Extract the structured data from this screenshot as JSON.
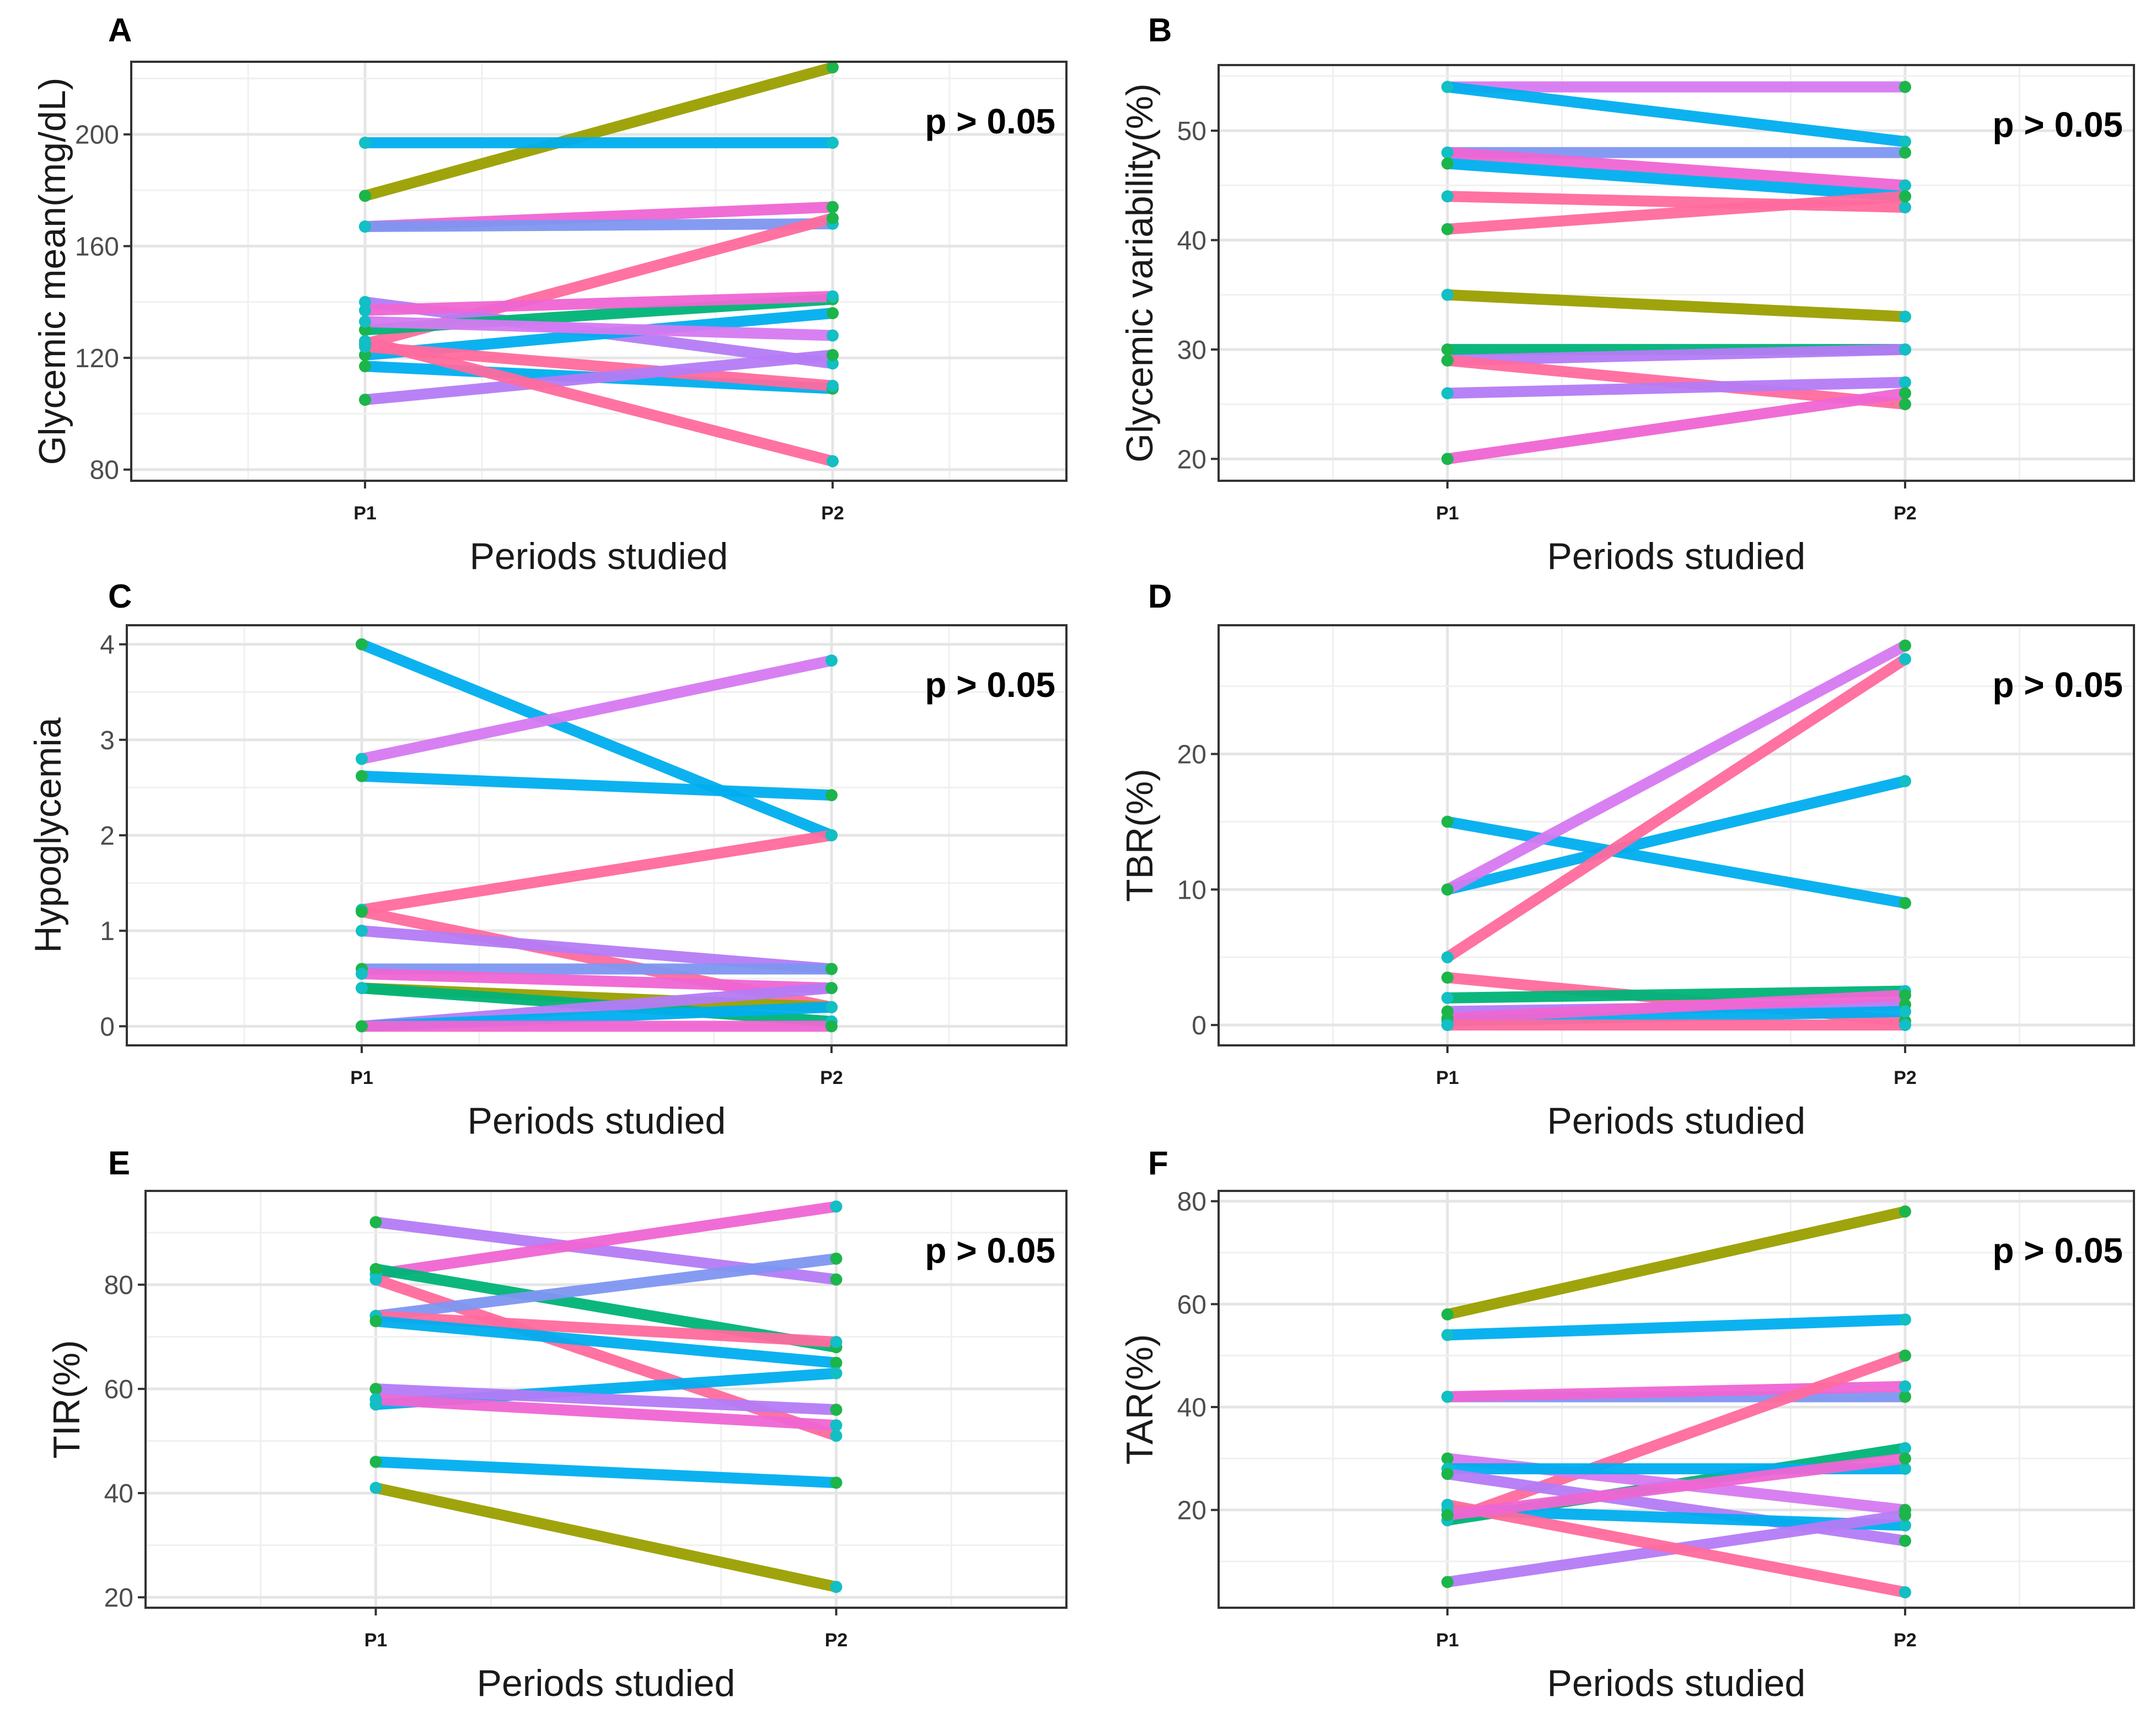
{
  "chart_data": [
    {
      "panel": "A",
      "type": "line",
      "xlabel": "Periods studied",
      "ylabel": "Glycemic mean(mg/dL)",
      "categories": [
        "P1",
        "P2"
      ],
      "ylim": [
        76,
        226
      ],
      "yticks": [
        80,
        120,
        160,
        200
      ],
      "annotation": "p > 0.05",
      "series": [
        {
          "color": "#9AA000",
          "values": [
            178,
            224
          ]
        },
        {
          "color": "#00AEEF",
          "values": [
            197,
            197
          ]
        },
        {
          "color": "#F066D4",
          "values": [
            167,
            174
          ]
        },
        {
          "color": "#7F96F2",
          "values": [
            167,
            168
          ]
        },
        {
          "color": "#FF6B9E",
          "values": [
            125,
            170
          ]
        },
        {
          "color": "#B57CF6",
          "values": [
            140,
            118
          ]
        },
        {
          "color": "#00B478",
          "values": [
            130,
            141
          ]
        },
        {
          "color": "#F066D4",
          "values": [
            137,
            142
          ]
        },
        {
          "color": "#00AEEF",
          "values": [
            121,
            136
          ]
        },
        {
          "color": "#D67AF2",
          "values": [
            133,
            128
          ]
        },
        {
          "color": "#00AEEF",
          "values": [
            117,
            109
          ]
        },
        {
          "color": "#FF6B9E",
          "values": [
            124,
            110
          ]
        },
        {
          "color": "#B57CF6",
          "values": [
            105,
            121
          ]
        },
        {
          "color": "#FF6B9E",
          "values": [
            126,
            83
          ]
        }
      ]
    },
    {
      "panel": "B",
      "type": "line",
      "xlabel": "Periods studied",
      "ylabel": "Glycemic variability(%)",
      "categories": [
        "P1",
        "P2"
      ],
      "ylim": [
        18,
        56
      ],
      "yticks": [
        20,
        30,
        40,
        50
      ],
      "annotation": "p > 0.05",
      "series": [
        {
          "color": "#D67AF2",
          "values": [
            54,
            54
          ]
        },
        {
          "color": "#00AEEF",
          "values": [
            54,
            49
          ]
        },
        {
          "color": "#7F96F2",
          "values": [
            48,
            48
          ]
        },
        {
          "color": "#F066D4",
          "values": [
            48,
            45
          ]
        },
        {
          "color": "#00AEEF",
          "values": [
            47,
            44
          ]
        },
        {
          "color": "#FF6B9E",
          "values": [
            44,
            43
          ]
        },
        {
          "color": "#FF6B9E",
          "values": [
            41,
            44
          ]
        },
        {
          "color": "#9AA000",
          "values": [
            35,
            33
          ]
        },
        {
          "color": "#00B478",
          "values": [
            30,
            30
          ]
        },
        {
          "color": "#B57CF6",
          "values": [
            29,
            30
          ]
        },
        {
          "color": "#FF6B9E",
          "values": [
            29,
            25
          ]
        },
        {
          "color": "#B57CF6",
          "values": [
            26,
            27
          ]
        },
        {
          "color": "#F066D4",
          "values": [
            20,
            26
          ]
        }
      ]
    },
    {
      "panel": "C",
      "type": "line",
      "xlabel": "Periods studied",
      "ylabel": "Hypoglycemia",
      "categories": [
        "P1",
        "P2"
      ],
      "ylim": [
        -0.2,
        4.2
      ],
      "yticks": [
        0,
        1,
        2,
        3,
        4
      ],
      "annotation": "p > 0.05",
      "series": [
        {
          "color": "#00AEEF",
          "values": [
            4.0,
            2.0
          ]
        },
        {
          "color": "#D67AF2",
          "values": [
            2.8,
            3.83
          ]
        },
        {
          "color": "#00AEEF",
          "values": [
            2.62,
            2.42
          ]
        },
        {
          "color": "#FF6B9E",
          "values": [
            1.22,
            2.0
          ]
        },
        {
          "color": "#FF6B9E",
          "values": [
            1.2,
            0.2
          ]
        },
        {
          "color": "#B57CF6",
          "values": [
            1.0,
            0.6
          ]
        },
        {
          "color": "#9AA000",
          "values": [
            0.4,
            0.2
          ]
        },
        {
          "color": "#00B478",
          "values": [
            0.4,
            0.05
          ]
        },
        {
          "color": "#7F96F2",
          "values": [
            0.6,
            0.6
          ]
        },
        {
          "color": "#F066D4",
          "values": [
            0.55,
            0.4
          ]
        },
        {
          "color": "#B57CF6",
          "values": [
            0.0,
            0.4
          ]
        },
        {
          "color": "#00AEEF",
          "values": [
            0.0,
            0.2
          ]
        },
        {
          "color": "#F066D4",
          "values": [
            0.0,
            0.0
          ]
        }
      ]
    },
    {
      "panel": "D",
      "type": "line",
      "xlabel": "Periods studied",
      "ylabel": "TBR(%)",
      "categories": [
        "P1",
        "P2"
      ],
      "ylim": [
        -1.5,
        29.5
      ],
      "yticks": [
        0,
        10,
        20
      ],
      "annotation": "p > 0.05",
      "series": [
        {
          "color": "#00AEEF",
          "values": [
            15,
            9
          ]
        },
        {
          "color": "#00AEEF",
          "values": [
            10,
            18
          ]
        },
        {
          "color": "#D67AF2",
          "values": [
            10,
            28
          ]
        },
        {
          "color": "#FF6B9E",
          "values": [
            5,
            27
          ]
        },
        {
          "color": "#FF6B9E",
          "values": [
            3.5,
            0.3
          ]
        },
        {
          "color": "#00B478",
          "values": [
            2,
            2.5
          ]
        },
        {
          "color": "#B57CF6",
          "values": [
            1,
            1.5
          ]
        },
        {
          "color": "#00AEEF",
          "values": [
            0.3,
            1.0
          ]
        },
        {
          "color": "#F066D4",
          "values": [
            0.5,
            2.2
          ]
        },
        {
          "color": "#FF6B9E",
          "values": [
            0,
            0
          ]
        }
      ]
    },
    {
      "panel": "E",
      "type": "line",
      "xlabel": "Periods studied",
      "ylabel": "TIR(%)",
      "categories": [
        "P1",
        "P2"
      ],
      "ylim": [
        18,
        98
      ],
      "yticks": [
        20,
        40,
        60,
        80
      ],
      "annotation": "p > 0.05",
      "series": [
        {
          "color": "#B57CF6",
          "values": [
            92,
            81
          ]
        },
        {
          "color": "#F066D4",
          "values": [
            82,
            95
          ]
        },
        {
          "color": "#00B478",
          "values": [
            83,
            68
          ]
        },
        {
          "color": "#FF6B9E",
          "values": [
            81,
            51
          ]
        },
        {
          "color": "#7F96F2",
          "values": [
            74,
            85
          ]
        },
        {
          "color": "#FF6B9E",
          "values": [
            74,
            69
          ]
        },
        {
          "color": "#00AEEF",
          "values": [
            73,
            65
          ]
        },
        {
          "color": "#00AEEF",
          "values": [
            57,
            63
          ]
        },
        {
          "color": "#B57CF6",
          "values": [
            60,
            56
          ]
        },
        {
          "color": "#F066D4",
          "values": [
            58,
            53
          ]
        },
        {
          "color": "#00AEEF",
          "values": [
            46,
            42
          ]
        },
        {
          "color": "#9AA000",
          "values": [
            41,
            22
          ]
        }
      ]
    },
    {
      "panel": "F",
      "type": "line",
      "xlabel": "Periods studied",
      "ylabel": "TAR(%)",
      "categories": [
        "P1",
        "P2"
      ],
      "ylim": [
        1,
        82
      ],
      "yticks": [
        20,
        40,
        60,
        80
      ],
      "annotation": "p > 0.05",
      "series": [
        {
          "color": "#9AA000",
          "values": [
            58,
            78
          ]
        },
        {
          "color": "#00AEEF",
          "values": [
            54,
            57
          ]
        },
        {
          "color": "#7F96F2",
          "values": [
            42,
            42
          ]
        },
        {
          "color": "#F066D4",
          "values": [
            42,
            44
          ]
        },
        {
          "color": "#FF6B9E",
          "values": [
            18,
            50
          ]
        },
        {
          "color": "#00B478",
          "values": [
            18,
            32
          ]
        },
        {
          "color": "#D67AF2",
          "values": [
            30,
            20
          ]
        },
        {
          "color": "#00AEEF",
          "values": [
            28,
            28
          ]
        },
        {
          "color": "#B57CF6",
          "values": [
            27,
            14
          ]
        },
        {
          "color": "#00AEEF",
          "values": [
            20,
            17
          ]
        },
        {
          "color": "#B57CF6",
          "values": [
            6,
            19
          ]
        },
        {
          "color": "#FF6B9E",
          "values": [
            21,
            4
          ]
        },
        {
          "color": "#F066D4",
          "values": [
            19,
            30
          ]
        }
      ]
    }
  ]
}
